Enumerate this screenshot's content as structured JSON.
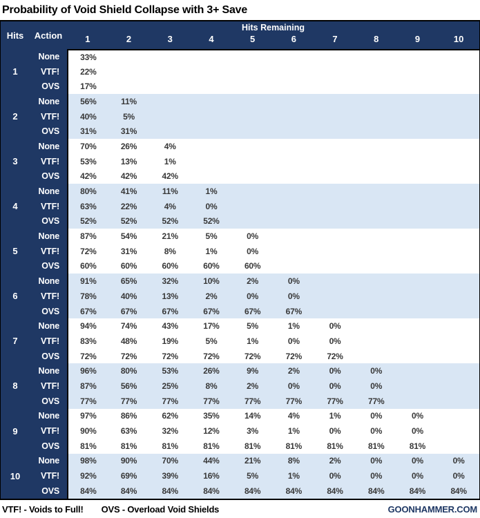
{
  "title": "Probability of Void Shield Collapse with 3+ Save",
  "chart_data": {
    "type": "table",
    "title": "Probability of Void Shield Collapse with 3+ Save",
    "row_group_header": "Hits",
    "action_header": "Action",
    "column_group_header": "Hits Remaining",
    "columns": [
      "1",
      "2",
      "3",
      "4",
      "5",
      "6",
      "7",
      "8",
      "9",
      "10"
    ],
    "groups": [
      {
        "hits": "1",
        "rows": [
          {
            "action": "None",
            "values": [
              "33%"
            ]
          },
          {
            "action": "VTF!",
            "values": [
              "22%"
            ]
          },
          {
            "action": "OVS",
            "values": [
              "17%"
            ]
          }
        ]
      },
      {
        "hits": "2",
        "rows": [
          {
            "action": "None",
            "values": [
              "56%",
              "11%"
            ]
          },
          {
            "action": "VTF!",
            "values": [
              "40%",
              "5%"
            ]
          },
          {
            "action": "OVS",
            "values": [
              "31%",
              "31%"
            ]
          }
        ]
      },
      {
        "hits": "3",
        "rows": [
          {
            "action": "None",
            "values": [
              "70%",
              "26%",
              "4%"
            ]
          },
          {
            "action": "VTF!",
            "values": [
              "53%",
              "13%",
              "1%"
            ]
          },
          {
            "action": "OVS",
            "values": [
              "42%",
              "42%",
              "42%"
            ]
          }
        ]
      },
      {
        "hits": "4",
        "rows": [
          {
            "action": "None",
            "values": [
              "80%",
              "41%",
              "11%",
              "1%"
            ]
          },
          {
            "action": "VTF!",
            "values": [
              "63%",
              "22%",
              "4%",
              "0%"
            ]
          },
          {
            "action": "OVS",
            "values": [
              "52%",
              "52%",
              "52%",
              "52%"
            ]
          }
        ]
      },
      {
        "hits": "5",
        "rows": [
          {
            "action": "None",
            "values": [
              "87%",
              "54%",
              "21%",
              "5%",
              "0%"
            ]
          },
          {
            "action": "VTF!",
            "values": [
              "72%",
              "31%",
              "8%",
              "1%",
              "0%"
            ]
          },
          {
            "action": "OVS",
            "values": [
              "60%",
              "60%",
              "60%",
              "60%",
              "60%"
            ]
          }
        ]
      },
      {
        "hits": "6",
        "rows": [
          {
            "action": "None",
            "values": [
              "91%",
              "65%",
              "32%",
              "10%",
              "2%",
              "0%"
            ]
          },
          {
            "action": "VTF!",
            "values": [
              "78%",
              "40%",
              "13%",
              "2%",
              "0%",
              "0%"
            ]
          },
          {
            "action": "OVS",
            "values": [
              "67%",
              "67%",
              "67%",
              "67%",
              "67%",
              "67%"
            ]
          }
        ]
      },
      {
        "hits": "7",
        "rows": [
          {
            "action": "None",
            "values": [
              "94%",
              "74%",
              "43%",
              "17%",
              "5%",
              "1%",
              "0%"
            ]
          },
          {
            "action": "VTF!",
            "values": [
              "83%",
              "48%",
              "19%",
              "5%",
              "1%",
              "0%",
              "0%"
            ]
          },
          {
            "action": "OVS",
            "values": [
              "72%",
              "72%",
              "72%",
              "72%",
              "72%",
              "72%",
              "72%"
            ]
          }
        ]
      },
      {
        "hits": "8",
        "rows": [
          {
            "action": "None",
            "values": [
              "96%",
              "80%",
              "53%",
              "26%",
              "9%",
              "2%",
              "0%",
              "0%"
            ]
          },
          {
            "action": "VTF!",
            "values": [
              "87%",
              "56%",
              "25%",
              "8%",
              "2%",
              "0%",
              "0%",
              "0%"
            ]
          },
          {
            "action": "OVS",
            "values": [
              "77%",
              "77%",
              "77%",
              "77%",
              "77%",
              "77%",
              "77%",
              "77%"
            ]
          }
        ]
      },
      {
        "hits": "9",
        "rows": [
          {
            "action": "None",
            "values": [
              "97%",
              "86%",
              "62%",
              "35%",
              "14%",
              "4%",
              "1%",
              "0%",
              "0%"
            ]
          },
          {
            "action": "VTF!",
            "values": [
              "90%",
              "63%",
              "32%",
              "12%",
              "3%",
              "1%",
              "0%",
              "0%",
              "0%"
            ]
          },
          {
            "action": "OVS",
            "values": [
              "81%",
              "81%",
              "81%",
              "81%",
              "81%",
              "81%",
              "81%",
              "81%",
              "81%"
            ]
          }
        ]
      },
      {
        "hits": "10",
        "rows": [
          {
            "action": "None",
            "values": [
              "98%",
              "90%",
              "70%",
              "44%",
              "21%",
              "8%",
              "2%",
              "0%",
              "0%",
              "0%"
            ]
          },
          {
            "action": "VTF!",
            "values": [
              "92%",
              "69%",
              "39%",
              "16%",
              "5%",
              "1%",
              "0%",
              "0%",
              "0%",
              "0%"
            ]
          },
          {
            "action": "OVS",
            "values": [
              "84%",
              "84%",
              "84%",
              "84%",
              "84%",
              "84%",
              "84%",
              "84%",
              "84%",
              "84%"
            ]
          }
        ]
      }
    ]
  },
  "footer": {
    "legend_vtf": "VTF! - Voids to Full!",
    "legend_ovs": "OVS - Overload Void Shields",
    "site": "GOONHAMMER.COM"
  },
  "colors": {
    "navy": "#1F3864",
    "row_alt": "#D9E6F4",
    "row_base": "#FFFFFF",
    "data_text": "#383838",
    "border": "#000000"
  }
}
